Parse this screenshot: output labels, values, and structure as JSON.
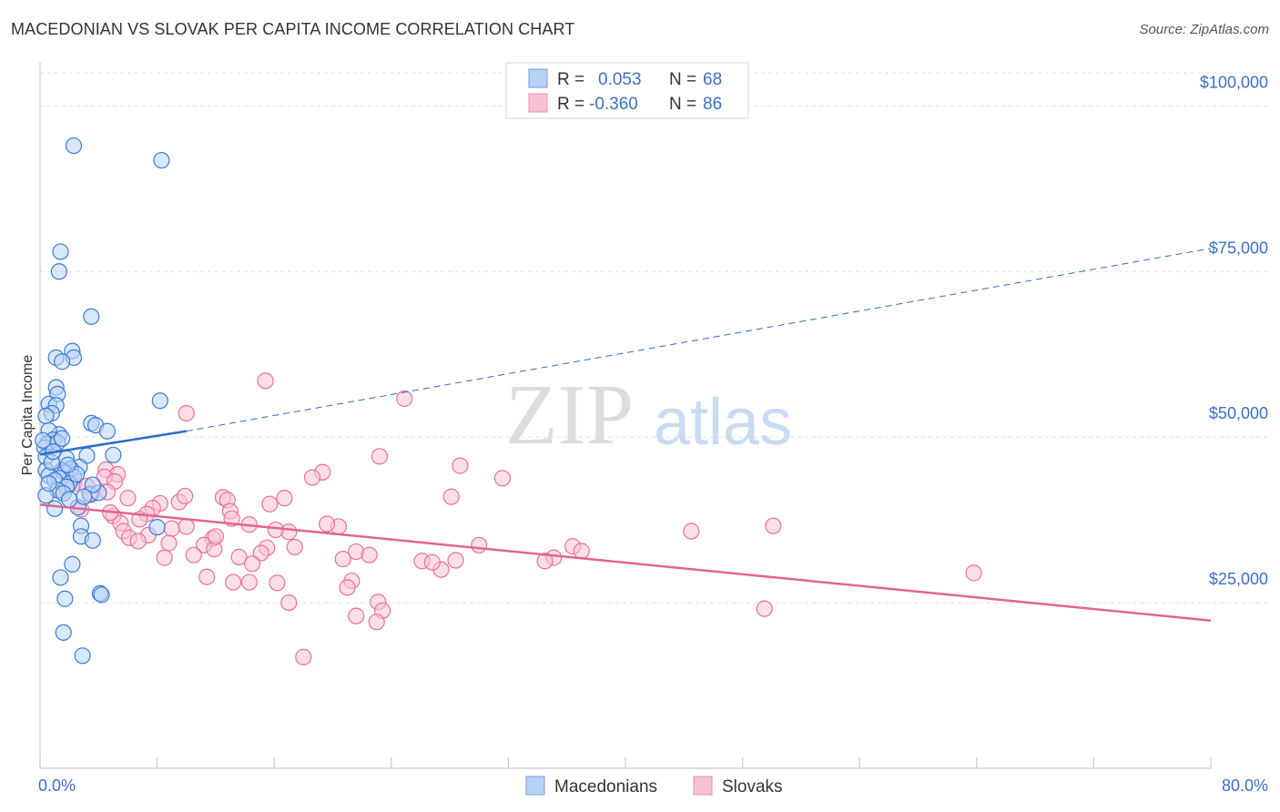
{
  "title": "MACEDONIAN VS SLOVAK PER CAPITA INCOME CORRELATION CHART",
  "source": "Source: ZipAtlas.com",
  "watermark": {
    "zip": "ZIP",
    "atlas": "atlas"
  },
  "colors": {
    "blue": "#3a7bd5",
    "blue_fill": "#b9d3f5",
    "blue_line": "#2b6cc4",
    "pink": "#e8709a",
    "pink_fill": "#f7c3d4",
    "pink_line": "#e2648f",
    "tick_text": "#3a6fc4",
    "grid": "#dde1e6"
  },
  "chart_data": {
    "type": "scatter",
    "title": "MACEDONIAN VS SLOVAK PER CAPITA INCOME CORRELATION CHART",
    "xlabel": "",
    "ylabel": "Per Capita Income",
    "xlim": [
      0,
      80
    ],
    "ylim": [
      0,
      105000
    ],
    "x_tick_labels": [
      "0.0%",
      "80.0%"
    ],
    "y_ticks": [
      25000,
      50000,
      75000,
      100000
    ],
    "y_tick_labels": [
      "$25,000",
      "$50,000",
      "$75,000",
      "$100,000"
    ],
    "legend": [
      {
        "name": "Macedonians",
        "r_label": "R =",
        "r": "0.053",
        "n_label": "N =",
        "n": "68"
      },
      {
        "name": "Slovaks",
        "r_label": "R =",
        "r": "-0.360",
        "n_label": "N =",
        "n": "86"
      }
    ],
    "series": [
      {
        "name": "Macedonians",
        "trend": {
          "x": [
            0,
            10
          ],
          "y": [
            47400,
            50900
          ],
          "dashed_to_x": 80,
          "dashed_to_y": 78500
        },
        "points": [
          [
            2.3,
            94000
          ],
          [
            8.3,
            91800
          ],
          [
            1.4,
            78000
          ],
          [
            1.3,
            75000
          ],
          [
            3.5,
            68200
          ],
          [
            2.2,
            63000
          ],
          [
            1.1,
            62000
          ],
          [
            2.3,
            62000
          ],
          [
            1.5,
            61400
          ],
          [
            8.2,
            55500
          ],
          [
            1.1,
            57500
          ],
          [
            1.2,
            56500
          ],
          [
            0.6,
            55000
          ],
          [
            1.1,
            54800
          ],
          [
            0.8,
            53600
          ],
          [
            0.4,
            53200
          ],
          [
            3.5,
            52100
          ],
          [
            3.8,
            51800
          ],
          [
            4.6,
            50900
          ],
          [
            1.3,
            50400
          ],
          [
            0.6,
            51000
          ],
          [
            0.9,
            49600
          ],
          [
            0.5,
            49000
          ],
          [
            1.2,
            49200
          ],
          [
            0.3,
            48400
          ],
          [
            5.0,
            47300
          ],
          [
            3.2,
            47200
          ],
          [
            1.8,
            46800
          ],
          [
            0.4,
            47000
          ],
          [
            0.4,
            45000
          ],
          [
            2.7,
            45500
          ],
          [
            2.1,
            45200
          ],
          [
            1.5,
            45000
          ],
          [
            1.7,
            44600
          ],
          [
            2.3,
            44000
          ],
          [
            0.6,
            44200
          ],
          [
            1.3,
            43800
          ],
          [
            1.0,
            43500
          ],
          [
            2.0,
            43000
          ],
          [
            1.8,
            42500
          ],
          [
            1.2,
            42000
          ],
          [
            1.6,
            41500
          ],
          [
            0.4,
            41200
          ],
          [
            3.4,
            41400
          ],
          [
            4.0,
            41600
          ],
          [
            3.6,
            42800
          ],
          [
            1.0,
            39200
          ],
          [
            2.6,
            39400
          ],
          [
            2.8,
            36600
          ],
          [
            2.8,
            35000
          ],
          [
            3.6,
            34400
          ],
          [
            8.0,
            36400
          ],
          [
            2.2,
            30800
          ],
          [
            1.4,
            28800
          ],
          [
            4.1,
            26400
          ],
          [
            4.2,
            26200
          ],
          [
            1.7,
            25600
          ],
          [
            1.6,
            20500
          ],
          [
            2.9,
            17000
          ],
          [
            0.2,
            49500
          ],
          [
            0.8,
            46200
          ],
          [
            2.5,
            44400
          ],
          [
            0.9,
            47800
          ],
          [
            1.9,
            45800
          ],
          [
            0.6,
            43000
          ],
          [
            3.0,
            41000
          ],
          [
            1.5,
            49800
          ],
          [
            2.0,
            40600
          ]
        ]
      },
      {
        "name": "Slovaks",
        "trend": {
          "x": [
            0,
            80
          ],
          "y": [
            39800,
            22300
          ]
        },
        "points": [
          [
            15.4,
            58500
          ],
          [
            24.9,
            55800
          ],
          [
            10.0,
            53600
          ],
          [
            23.2,
            47100
          ],
          [
            28.7,
            45700
          ],
          [
            19.3,
            44700
          ],
          [
            31.6,
            43800
          ],
          [
            18.6,
            43900
          ],
          [
            4.5,
            45100
          ],
          [
            5.3,
            44400
          ],
          [
            4.4,
            44000
          ],
          [
            2.3,
            43000
          ],
          [
            5.1,
            43300
          ],
          [
            3.2,
            42600
          ],
          [
            1.4,
            41800
          ],
          [
            4.6,
            41700
          ],
          [
            28.1,
            41000
          ],
          [
            16.7,
            40800
          ],
          [
            12.5,
            40900
          ],
          [
            12.8,
            40500
          ],
          [
            9.5,
            40200
          ],
          [
            8.2,
            40000
          ],
          [
            7.7,
            39300
          ],
          [
            15.7,
            39900
          ],
          [
            2.8,
            39100
          ],
          [
            13.0,
            38800
          ],
          [
            7.3,
            38400
          ],
          [
            5.0,
            38100
          ],
          [
            13.1,
            37700
          ],
          [
            6.8,
            37600
          ],
          [
            5.5,
            37000
          ],
          [
            14.3,
            36800
          ],
          [
            17.0,
            35700
          ],
          [
            20.4,
            36500
          ],
          [
            9.0,
            36200
          ],
          [
            10.0,
            36500
          ],
          [
            16.1,
            36000
          ],
          [
            5.7,
            35800
          ],
          [
            7.4,
            35200
          ],
          [
            11.8,
            34700
          ],
          [
            6.1,
            34800
          ],
          [
            6.7,
            34300
          ],
          [
            8.8,
            34000
          ],
          [
            11.2,
            33700
          ],
          [
            11.9,
            33100
          ],
          [
            15.5,
            33300
          ],
          [
            36.4,
            33500
          ],
          [
            37.0,
            32800
          ],
          [
            13.6,
            31900
          ],
          [
            8.5,
            31800
          ],
          [
            10.5,
            32200
          ],
          [
            15.1,
            32500
          ],
          [
            21.6,
            32700
          ],
          [
            20.7,
            31600
          ],
          [
            26.1,
            31300
          ],
          [
            28.4,
            31400
          ],
          [
            35.1,
            31800
          ],
          [
            27.4,
            30000
          ],
          [
            13.2,
            28100
          ],
          [
            14.3,
            28100
          ],
          [
            16.2,
            28000
          ],
          [
            11.4,
            28900
          ],
          [
            21.3,
            28300
          ],
          [
            21.0,
            27300
          ],
          [
            17.0,
            25000
          ],
          [
            23.1,
            25100
          ],
          [
            23.4,
            23800
          ],
          [
            21.6,
            23000
          ],
          [
            23.0,
            22100
          ],
          [
            18.0,
            16800
          ],
          [
            44.5,
            35800
          ],
          [
            50.1,
            36600
          ],
          [
            49.5,
            24100
          ],
          [
            63.8,
            29500
          ],
          [
            4.8,
            38600
          ],
          [
            6.0,
            40800
          ],
          [
            3.5,
            41300
          ],
          [
            9.9,
            41100
          ],
          [
            12.0,
            35000
          ],
          [
            19.6,
            36900
          ],
          [
            22.5,
            32200
          ],
          [
            26.8,
            31100
          ],
          [
            30.0,
            33700
          ],
          [
            34.5,
            31300
          ],
          [
            17.4,
            33400
          ],
          [
            14.5,
            30900
          ]
        ]
      }
    ]
  }
}
